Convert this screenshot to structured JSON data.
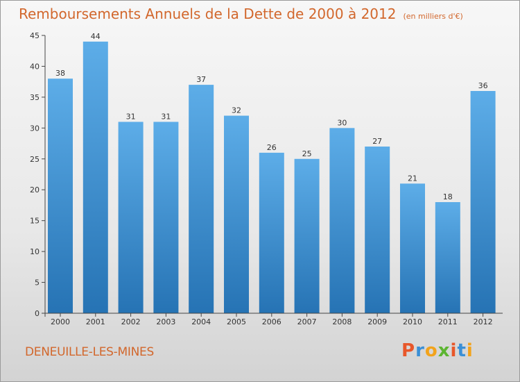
{
  "header": {
    "title": "Remboursements Annuels de la Dette de 2000 à 2012",
    "unit": "(en milliers d'€)"
  },
  "footer": {
    "town": "DENEUILLE-LES-MINES",
    "logo_text": "Proxiti",
    "logo_colors": [
      "#e8572a",
      "#3a8fd6",
      "#f2a31b",
      "#5cb531",
      "#e8572a",
      "#3a8fd6",
      "#f2a31b"
    ]
  },
  "colors": {
    "bar_light": "#5dade8",
    "bar_dark": "#2673b4",
    "axis": "#444444",
    "text": "#333333",
    "accent": "#d2672c"
  },
  "chart_data": {
    "type": "bar",
    "categories": [
      "2000",
      "2001",
      "2002",
      "2003",
      "2004",
      "2005",
      "2006",
      "2007",
      "2008",
      "2009",
      "2010",
      "2011",
      "2012"
    ],
    "values": [
      38,
      44,
      31,
      31,
      37,
      32,
      26,
      25,
      30,
      27,
      21,
      18,
      36
    ],
    "ylim": [
      0,
      45
    ],
    "yticks": [
      0,
      5,
      10,
      15,
      20,
      25,
      30,
      35,
      40,
      45
    ],
    "grid": false,
    "data_labels": true
  }
}
